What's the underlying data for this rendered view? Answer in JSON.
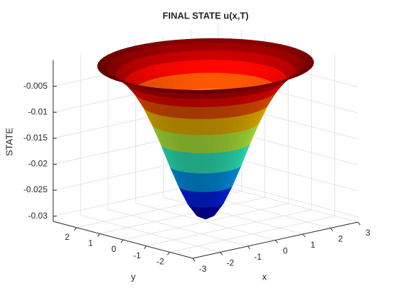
{
  "chart_data": {
    "type": "surface",
    "title": "FINAL STATE u(x,T)",
    "xlabel": "x",
    "ylabel": "y",
    "zlabel": "STATE",
    "r": [
      0,
      0.25,
      0.5,
      0.75,
      1,
      1.25,
      1.5,
      1.75,
      2,
      2.25,
      2.5,
      2.75,
      3
    ],
    "z": [
      -0.0305,
      -0.0297,
      -0.0274,
      -0.024,
      -0.02,
      -0.0157,
      -0.0118,
      -0.0083,
      -0.0056,
      -0.0036,
      -0.0022,
      -0.0012,
      -0.0007
    ],
    "colormap": "jet",
    "xlim": [
      -3,
      3
    ],
    "ylim": [
      -3,
      3
    ],
    "zlim": [
      -0.031,
      0
    ],
    "xticks": [
      -3,
      -2,
      -1,
      0,
      1,
      2,
      3
    ],
    "yticks": [
      -2,
      -1,
      0,
      1,
      2
    ],
    "zticks": [
      -0.03,
      -0.025,
      -0.02,
      -0.015,
      -0.01,
      -0.005
    ],
    "grid": true
  }
}
